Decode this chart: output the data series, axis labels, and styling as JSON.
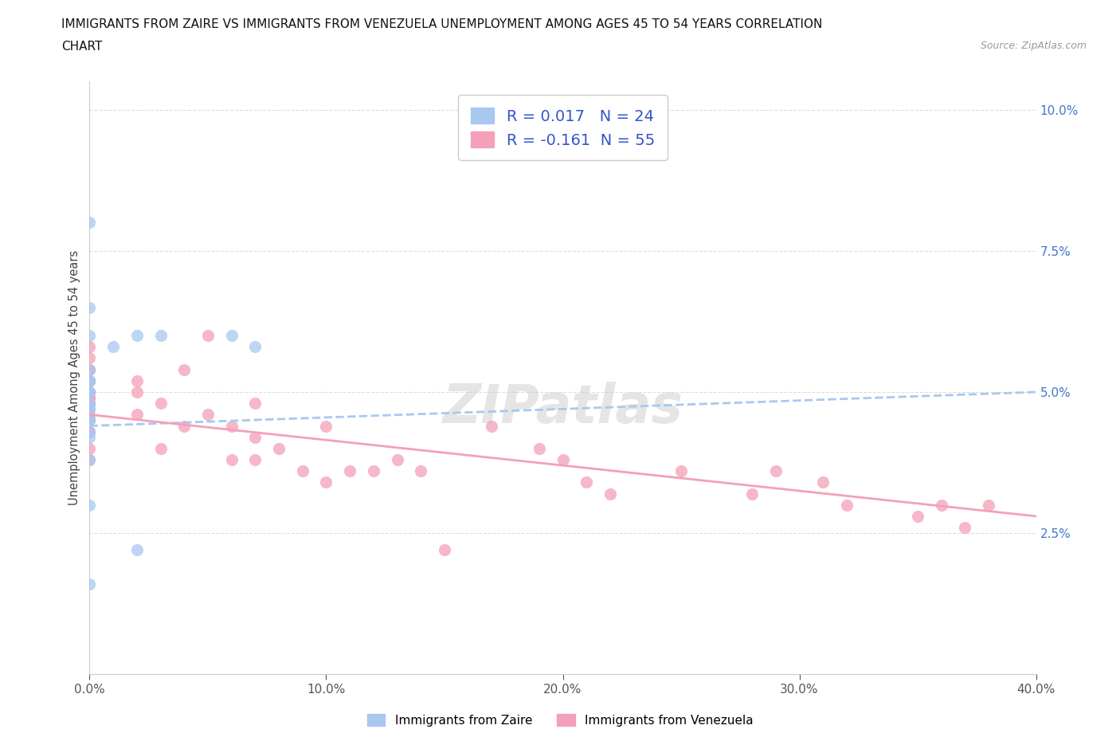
{
  "title_line1": "IMMIGRANTS FROM ZAIRE VS IMMIGRANTS FROM VENEZUELA UNEMPLOYMENT AMONG AGES 45 TO 54 YEARS CORRELATION",
  "title_line2": "CHART",
  "source_text": "Source: ZipAtlas.com",
  "ylabel": "Unemployment Among Ages 45 to 54 years",
  "xlim": [
    0.0,
    0.4
  ],
  "ylim": [
    0.0,
    0.105
  ],
  "xtick_labels": [
    "0.0%",
    "10.0%",
    "20.0%",
    "30.0%",
    "40.0%"
  ],
  "xtick_vals": [
    0.0,
    0.1,
    0.2,
    0.3,
    0.4
  ],
  "ytick_labels": [
    "2.5%",
    "5.0%",
    "7.5%",
    "10.0%"
  ],
  "ytick_vals": [
    0.025,
    0.05,
    0.075,
    0.1
  ],
  "background_color": "#ffffff",
  "grid_color": "#dddddd",
  "watermark_text": "ZIPatlas",
  "zaire_color": "#a8c8f0",
  "venezuela_color": "#f4a0b8",
  "zaire_R": 0.017,
  "zaire_N": 24,
  "venezuela_R": -0.161,
  "venezuela_N": 55,
  "zaire_scatter_x": [
    0.0,
    0.0,
    0.0,
    0.0,
    0.0,
    0.0,
    0.0,
    0.0,
    0.0,
    0.0,
    0.0,
    0.0,
    0.0,
    0.0,
    0.01,
    0.02,
    0.06,
    0.07,
    0.0,
    0.0,
    0.0,
    0.0,
    0.02,
    0.03
  ],
  "zaire_scatter_y": [
    0.043,
    0.045,
    0.045,
    0.047,
    0.047,
    0.048,
    0.05,
    0.05,
    0.052,
    0.052,
    0.054,
    0.06,
    0.065,
    0.08,
    0.058,
    0.06,
    0.06,
    0.058,
    0.042,
    0.038,
    0.03,
    0.016,
    0.022,
    0.06
  ],
  "venezuela_scatter_x": [
    0.0,
    0.0,
    0.0,
    0.0,
    0.0,
    0.0,
    0.0,
    0.0,
    0.0,
    0.0,
    0.0,
    0.0,
    0.0,
    0.0,
    0.0,
    0.0,
    0.0,
    0.0,
    0.02,
    0.02,
    0.02,
    0.03,
    0.03,
    0.04,
    0.04,
    0.05,
    0.05,
    0.06,
    0.06,
    0.07,
    0.07,
    0.07,
    0.08,
    0.09,
    0.1,
    0.1,
    0.11,
    0.12,
    0.13,
    0.14,
    0.15,
    0.17,
    0.19,
    0.2,
    0.21,
    0.22,
    0.25,
    0.28,
    0.29,
    0.31,
    0.32,
    0.35,
    0.36,
    0.37,
    0.38
  ],
  "venezuela_scatter_y": [
    0.043,
    0.043,
    0.045,
    0.045,
    0.046,
    0.048,
    0.048,
    0.049,
    0.049,
    0.05,
    0.052,
    0.052,
    0.054,
    0.054,
    0.056,
    0.058,
    0.04,
    0.038,
    0.05,
    0.046,
    0.052,
    0.048,
    0.04,
    0.044,
    0.054,
    0.046,
    0.06,
    0.038,
    0.044,
    0.048,
    0.042,
    0.038,
    0.04,
    0.036,
    0.044,
    0.034,
    0.036,
    0.036,
    0.038,
    0.036,
    0.022,
    0.044,
    0.04,
    0.038,
    0.034,
    0.032,
    0.036,
    0.032,
    0.036,
    0.034,
    0.03,
    0.028,
    0.03,
    0.026,
    0.03
  ],
  "zaire_trendline_x": [
    0.0,
    0.4
  ],
  "zaire_trendline_y": [
    0.044,
    0.05
  ],
  "venezuela_trendline_x": [
    0.0,
    0.4
  ],
  "venezuela_trendline_y": [
    0.046,
    0.028
  ],
  "legend_zaire_label": "Immigrants from Zaire",
  "legend_venezuela_label": "Immigrants from Venezuela"
}
